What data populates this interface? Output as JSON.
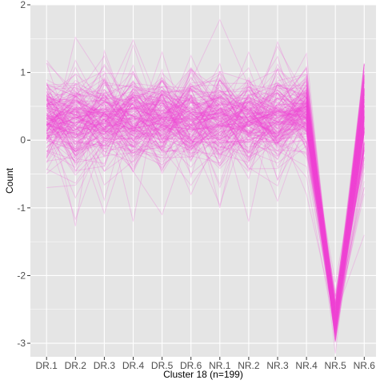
{
  "chart_data": {
    "type": "line",
    "subtype": "parallel-coordinates",
    "categories": [
      "DR.1",
      "DR.2",
      "DR.3",
      "DR.4",
      "DR.5",
      "DR.6",
      "NR.1",
      "NR.2",
      "NR.3",
      "NR.4",
      "NR.5",
      "NR.6"
    ],
    "xlabel": "Cluster 18 (n=199)",
    "ylabel": "Count",
    "ylim": [
      -3.2,
      2.0
    ],
    "yticks": [
      -3,
      -2,
      -1,
      0,
      1,
      2
    ],
    "n_lines": 199,
    "line_color": "#f044d8",
    "line_opacity": 0.22,
    "panel_background": "#e5e5e5",
    "grid_color": "#ffffff",
    "grid": true,
    "legend": "none",
    "profile_mean": [
      0.3,
      0.28,
      0.3,
      0.29,
      0.3,
      0.3,
      0.32,
      0.3,
      0.31,
      0.4,
      -2.65,
      0.35
    ],
    "profile_spread": [
      0.32,
      0.36,
      0.34,
      0.34,
      0.33,
      0.33,
      0.34,
      0.33,
      0.34,
      0.28,
      0.15,
      0.4
    ],
    "observed_extremes": {
      "max": [
        1.18,
        1.52,
        1.32,
        1.48,
        1.3,
        1.25,
        1.78,
        1.3,
        1.45,
        1.28,
        -2.1,
        1.13
      ],
      "min": [
        -0.7,
        -1.27,
        -1.08,
        -1.2,
        -1.1,
        -0.8,
        -1.0,
        -1.2,
        -0.9,
        -0.8,
        -3.15,
        -1.4
      ]
    }
  }
}
